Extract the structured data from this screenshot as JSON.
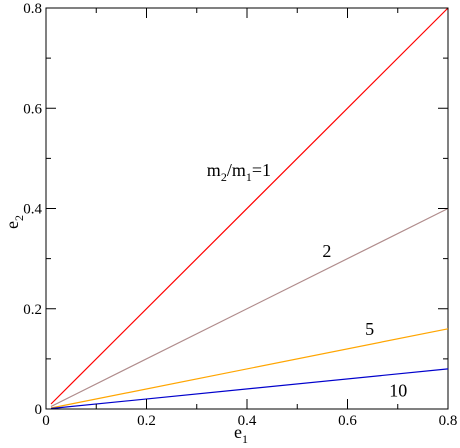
{
  "chart_data": {
    "type": "line",
    "xlabel": "e",
    "xlabel_sub": "1",
    "ylabel": "e",
    "ylabel_sub": "2",
    "xlim": [
      0,
      0.8
    ],
    "ylim": [
      0,
      0.8
    ],
    "xticks": [
      0,
      0.2,
      0.4,
      0.6,
      0.8
    ],
    "xtick_labels": [
      "0",
      "0.2",
      "0.4",
      "0.6",
      "0.8"
    ],
    "yticks": [
      0,
      0.2,
      0.4,
      0.6,
      0.8
    ],
    "ytick_labels": [
      "0",
      "0.2",
      "0.4",
      "0.6",
      "0.8"
    ],
    "grid": false,
    "series": [
      {
        "x": [
          0.01,
          0.8
        ],
        "y": [
          0.01,
          0.8
        ],
        "color": "#ff0000"
      },
      {
        "x": [
          0.01,
          0.8
        ],
        "y": [
          0.005,
          0.4
        ],
        "color": "#b08c8c"
      },
      {
        "x": [
          0.01,
          0.8
        ],
        "y": [
          0.002,
          0.16
        ],
        "color": "#ffa500"
      },
      {
        "x": [
          0.01,
          0.8
        ],
        "y": [
          0.001,
          0.08
        ],
        "color": "#0000cc"
      }
    ],
    "annotations": [
      {
        "text": "m",
        "sub": "2",
        "text2": "/m",
        "sub2": "1",
        "text3": "=1",
        "x": 0.32,
        "y": 0.465
      },
      {
        "text": "2",
        "x": 0.55,
        "y": 0.303
      },
      {
        "text": "5",
        "x": 0.635,
        "y": 0.148
      },
      {
        "text": "10",
        "x": 0.683,
        "y": 0.025
      }
    ]
  }
}
